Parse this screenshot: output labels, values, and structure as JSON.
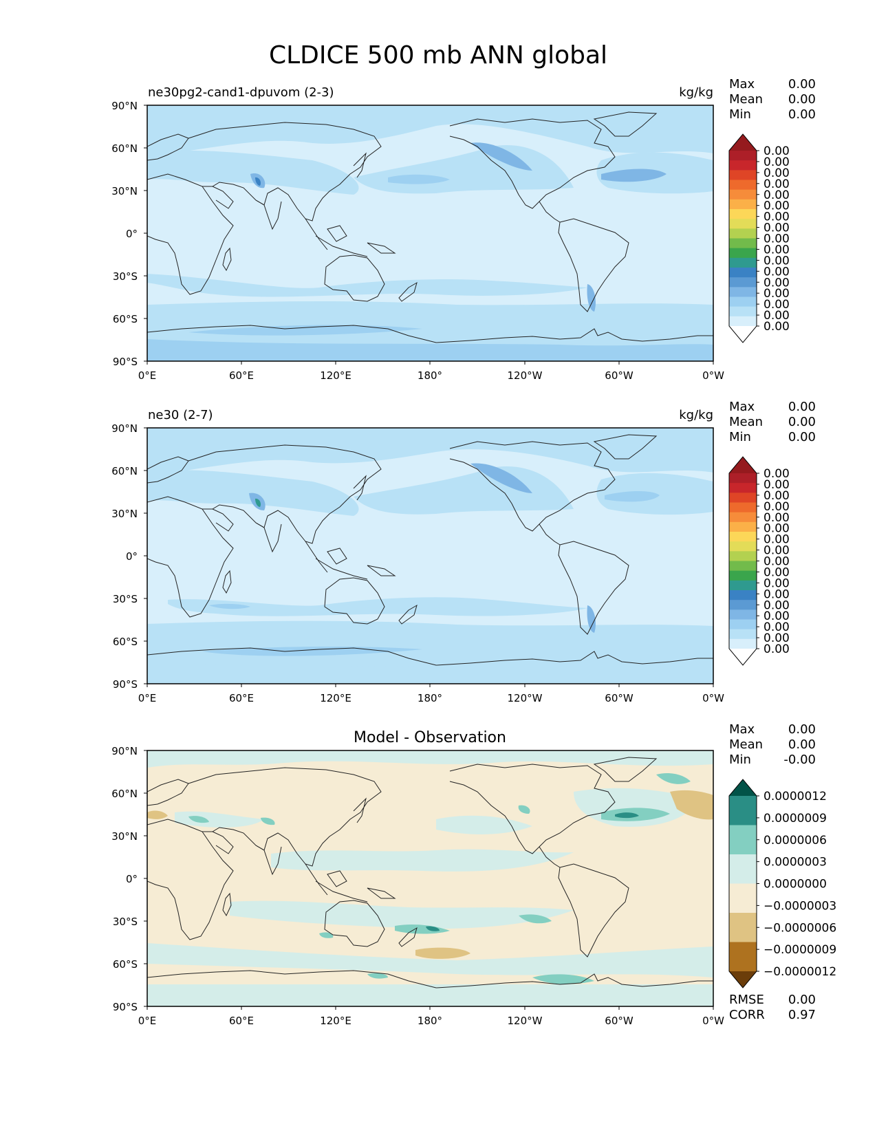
{
  "title": "CLDICE 500 mb ANN global",
  "lon_ticks": [
    "0°E",
    "60°E",
    "120°E",
    "180°",
    "120°W",
    "60°W",
    "0°W"
  ],
  "lat_ticks": [
    "90°N",
    "60°N",
    "30°N",
    "0°",
    "30°S",
    "60°S",
    "90°S"
  ],
  "panels": [
    {
      "name": "test",
      "label_left": "ne30pg2-cand1-dpuvom (2-3)",
      "label_right": "kg/kg",
      "label_center": "",
      "stats": [
        {
          "label": "Max",
          "value": "0.00"
        },
        {
          "label": "Mean",
          "value": "0.00"
        },
        {
          "label": "Min",
          "value": "0.00"
        }
      ],
      "colorbar": {
        "extend": "both",
        "colors": [
          "#ffffff",
          "#d8effb",
          "#b8e1f6",
          "#9dd0f1",
          "#7fb6e5",
          "#5b9ad3",
          "#3a82c4",
          "#2f9a8f",
          "#3aa54c",
          "#72bb4b",
          "#b3d150",
          "#e3dc58",
          "#fcd758",
          "#fbb048",
          "#f68c3a",
          "#ee6a2c",
          "#df4526",
          "#c8262b",
          "#ad1f28",
          "#951a1e"
        ],
        "labels": [
          "0.00",
          "0.00",
          "0.00",
          "0.00",
          "0.00",
          "0.00",
          "0.00",
          "0.00",
          "0.00",
          "0.00",
          "0.00",
          "0.00",
          "0.00",
          "0.00",
          "0.00",
          "0.00",
          "0.00"
        ]
      },
      "footer": []
    },
    {
      "name": "reference",
      "label_left": "ne30 (2-7)",
      "label_right": "kg/kg",
      "label_center": "",
      "stats": [
        {
          "label": "Max",
          "value": "0.00"
        },
        {
          "label": "Mean",
          "value": "0.00"
        },
        {
          "label": "Min",
          "value": "0.00"
        }
      ],
      "colorbar": {
        "extend": "both",
        "colors": [
          "#ffffff",
          "#d8effb",
          "#b8e1f6",
          "#9dd0f1",
          "#7fb6e5",
          "#5b9ad3",
          "#3a82c4",
          "#2f9a8f",
          "#3aa54c",
          "#72bb4b",
          "#b3d150",
          "#e3dc58",
          "#fcd758",
          "#fbb048",
          "#f68c3a",
          "#ee6a2c",
          "#df4526",
          "#c8262b",
          "#ad1f28",
          "#951a1e"
        ],
        "labels": [
          "0.00",
          "0.00",
          "0.00",
          "0.00",
          "0.00",
          "0.00",
          "0.00",
          "0.00",
          "0.00",
          "0.00",
          "0.00",
          "0.00",
          "0.00",
          "0.00",
          "0.00",
          "0.00",
          "0.00"
        ]
      },
      "footer": []
    },
    {
      "name": "difference",
      "label_left": "",
      "label_right": "",
      "label_center": "Model - Observation",
      "stats": [
        {
          "label": "Max",
          "value": "0.00"
        },
        {
          "label": "Mean",
          "value": "0.00"
        },
        {
          "label": "Min",
          "value": "-0.00"
        }
      ],
      "colorbar": {
        "extend": "both",
        "colors": [
          "#6b3d0a",
          "#ae721f",
          "#dfc383",
          "#f6ecd4",
          "#d4ede9",
          "#83cfc1",
          "#2a8e85",
          "#025348"
        ],
        "labels": [
          "−0.0000012",
          "−0.0000009",
          "−0.0000006",
          "−0.0000003",
          "0.0000000",
          "0.0000003",
          "0.0000006",
          "0.0000009",
          "0.0000012"
        ]
      },
      "footer": [
        {
          "label": "RMSE",
          "value": "0.00"
        },
        {
          "label": "CORR",
          "value": "0.97"
        }
      ]
    }
  ]
}
